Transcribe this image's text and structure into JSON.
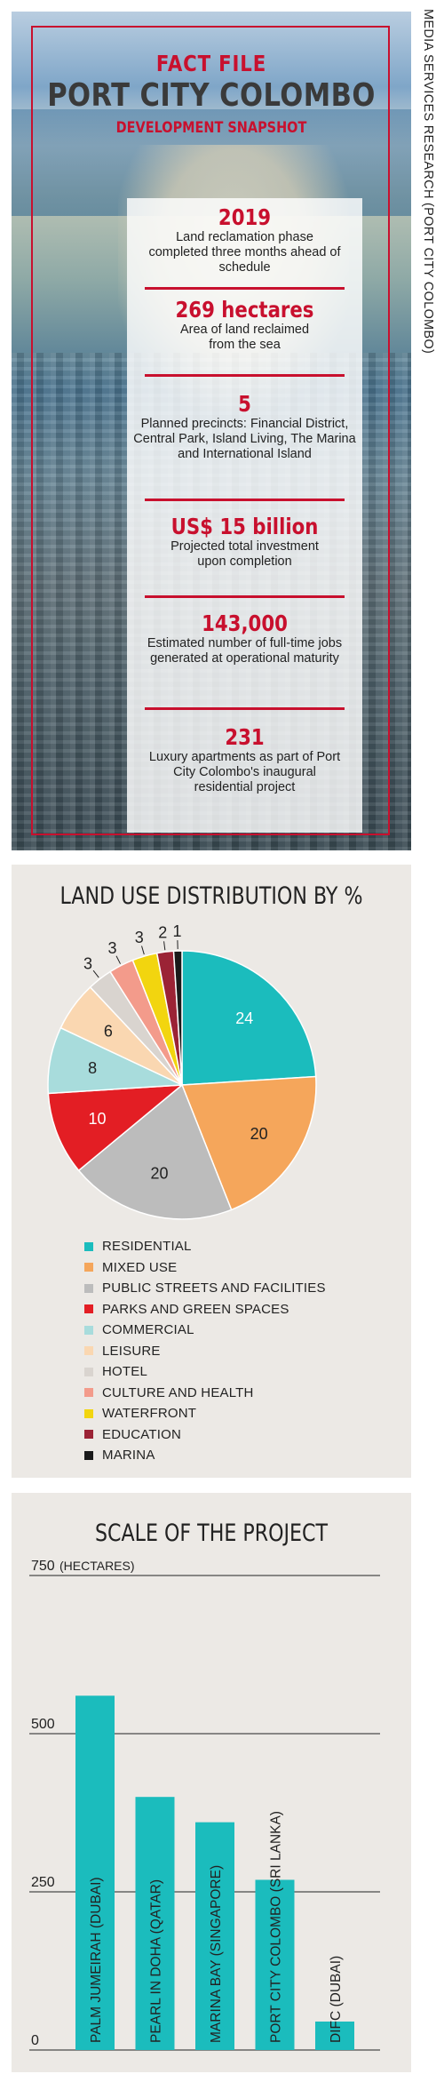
{
  "side_credit": "MEDIA SERVICES RESEARCH (PORT CITY COLOMBO)",
  "fact_file": {
    "kicker": "FACT FILE",
    "title": "PORT CITY COLOMBO",
    "subtitle": "DEVELOPMENT SNAPSHOT",
    "facts": [
      {
        "value": "2019",
        "desc": "Land reclamation phase completed three months ahead of schedule"
      },
      {
        "value": "269 hectares",
        "desc": "Area of land reclaimed from the sea"
      },
      {
        "value": "5",
        "desc": "Planned precincts: Financial District, Central Park, Island Living, The Marina and International Island"
      },
      {
        "value": "US$ 15 billion",
        "desc": "Projected total investment upon completion"
      },
      {
        "value": "143,000",
        "desc": "Estimated number of full-time jobs generated at operational maturity"
      },
      {
        "value": "231",
        "desc": "Luxury apartments as part of Port City Colombo's inaugural residential project"
      }
    ]
  },
  "chart_data": [
    {
      "type": "pie",
      "title": "LAND USE DISTRIBUTION BY %",
      "categories": [
        "RESIDENTIAL",
        "MIXED USE",
        "PUBLIC STREETS AND FACILITIES",
        "PARKS AND GREEN SPACES",
        "COMMERCIAL",
        "LEISURE",
        "HOTEL",
        "CULTURE AND HEALTH",
        "WATERFRONT",
        "EDUCATION",
        "MARINA"
      ],
      "values": [
        24,
        20,
        20,
        10,
        8,
        6,
        3,
        3,
        3,
        2,
        1
      ],
      "colors": [
        "#1bbcbd",
        "#f5a65b",
        "#bcbcbc",
        "#e31e24",
        "#a8dcdc",
        "#fad7b1",
        "#d9d4cf",
        "#f39b8b",
        "#f2d50f",
        "#9b2335",
        "#1a1a1a"
      ],
      "legend": "bottom"
    },
    {
      "type": "bar",
      "title": "SCALE OF THE PROJECT",
      "ylabel": "(HECTARES)",
      "ylim": [
        0,
        750
      ],
      "yticks": [
        "0",
        "250",
        "500",
        "750"
      ],
      "categories": [
        "PALM JUMEIRAH (DUBAI)",
        "PEARL IN DOHA (QATAR)",
        "MARINA BAY (SINGAPORE)",
        "PORT CITY COLOMBO (SRI LANKA)",
        "DIFC (DUBAI)"
      ],
      "values": [
        560,
        400,
        360,
        269,
        45
      ],
      "bar_color": "#1bbcbd",
      "grid": true
    }
  ]
}
